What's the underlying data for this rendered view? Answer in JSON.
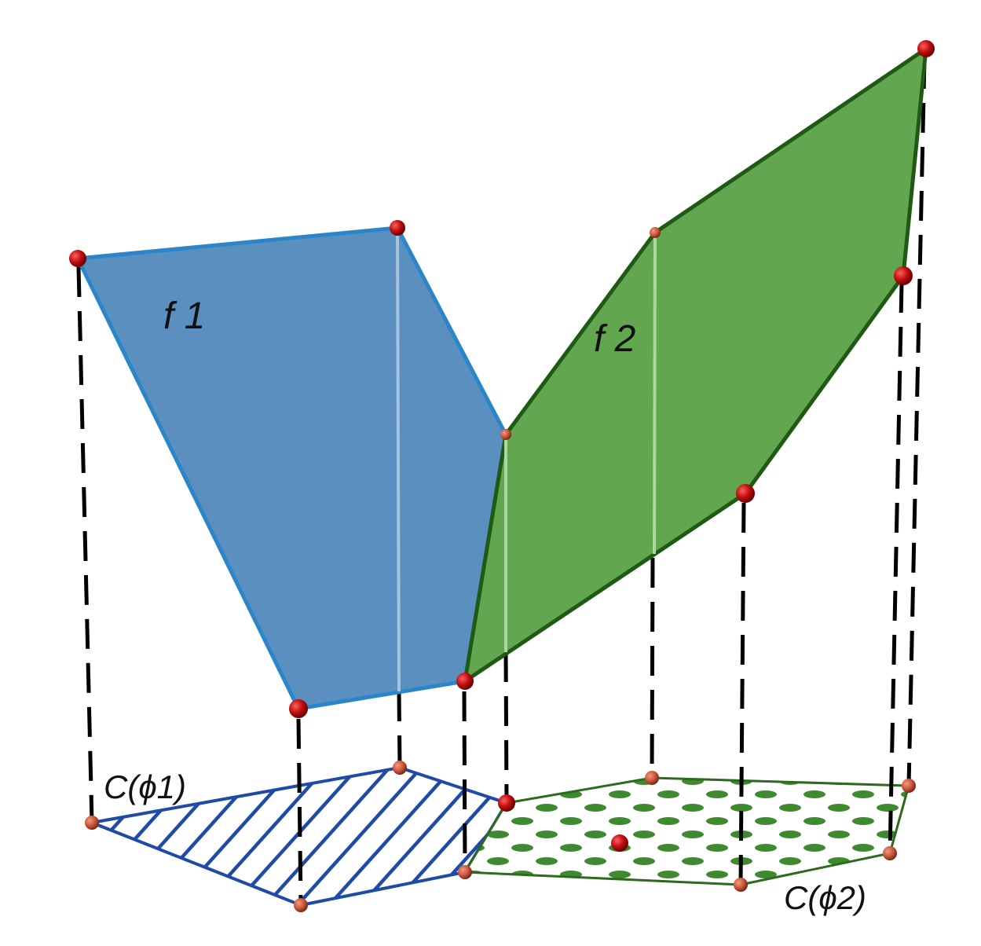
{
  "labels": {
    "face1": "f 1",
    "face2": "f 2",
    "chamber1": "C(ϕ1)",
    "chamber2": "C(ϕ2)"
  },
  "colors": {
    "face1_fill": "#5a8fbf",
    "face1_edge": "#2a86c8",
    "face2_fill": "#62a650",
    "face2_edge": "#1f5a14",
    "hatch": "#1e4aa8",
    "dots": "#3f8a30",
    "vertex": "#c01010",
    "vertex_small": "#c8553a",
    "projection": "#000000"
  }
}
